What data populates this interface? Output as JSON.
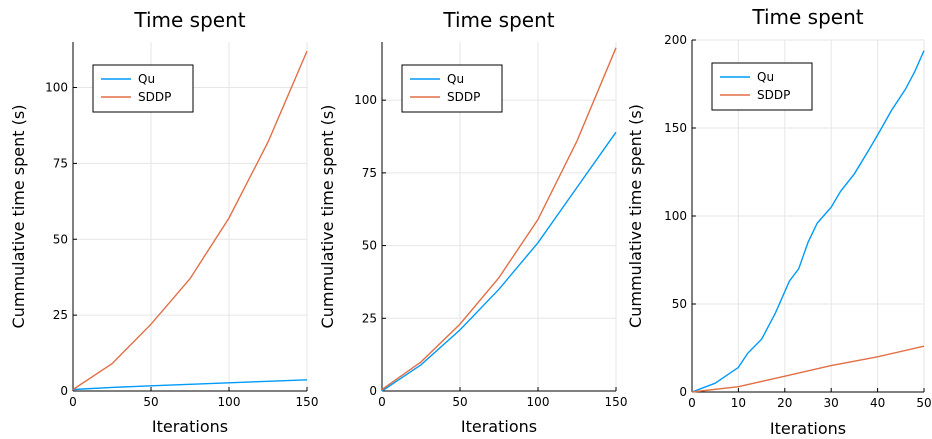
{
  "chart_data": [
    {
      "type": "line",
      "title": "Time spent",
      "xlabel": "Iterations",
      "ylabel": "Cummulative time spent (s)",
      "xlim": [
        0,
        150
      ],
      "ylim": [
        0,
        115
      ],
      "xticks": [
        0,
        50,
        100,
        150
      ],
      "yticks": [
        0,
        25,
        50,
        75,
        100
      ],
      "grid": true,
      "legend": "top-left",
      "series": [
        {
          "name": "Qu",
          "color": "#009af9",
          "x": [
            0,
            25,
            50,
            75,
            100,
            125,
            150
          ],
          "y": [
            0.5,
            1.2,
            1.7,
            2.2,
            2.7,
            3.2,
            3.7
          ]
        },
        {
          "name": "SDDP",
          "color": "#e26f46",
          "x": [
            0,
            25,
            50,
            75,
            100,
            125,
            150
          ],
          "y": [
            0.5,
            9,
            22,
            37,
            57,
            82,
            112
          ]
        }
      ]
    },
    {
      "type": "line",
      "title": "Time spent",
      "xlabel": "Iterations",
      "ylabel": "Cummulative time spent (s)",
      "xlim": [
        0,
        150
      ],
      "ylim": [
        0,
        120
      ],
      "xticks": [
        0,
        50,
        100,
        150
      ],
      "yticks": [
        0,
        25,
        50,
        75,
        100
      ],
      "grid": true,
      "legend": "top-left",
      "series": [
        {
          "name": "Qu",
          "color": "#009af9",
          "x": [
            0,
            25,
            50,
            75,
            100,
            125,
            150
          ],
          "y": [
            0,
            9,
            21,
            35,
            51,
            70,
            89
          ]
        },
        {
          "name": "SDDP",
          "color": "#e26f46",
          "x": [
            0,
            25,
            50,
            75,
            100,
            125,
            150
          ],
          "y": [
            0.5,
            10,
            23,
            39,
            59,
            86,
            118
          ]
        }
      ]
    },
    {
      "type": "line",
      "title": "Time spent",
      "xlabel": "Iterations",
      "ylabel": "Cummulative time spent (s)",
      "xlim": [
        0,
        50
      ],
      "ylim": [
        0,
        200
      ],
      "xticks": [
        0,
        10,
        20,
        30,
        40,
        50
      ],
      "yticks": [
        0,
        50,
        100,
        150,
        200
      ],
      "grid": true,
      "legend": "top-left",
      "series": [
        {
          "name": "Qu",
          "color": "#009af9",
          "x": [
            0,
            5,
            10,
            12,
            15,
            18,
            21,
            23,
            25,
            27,
            30,
            32,
            35,
            38,
            40,
            43,
            46,
            48,
            50
          ],
          "y": [
            0,
            5,
            14,
            22,
            30,
            45,
            63,
            70,
            85,
            96,
            105,
            114,
            124,
            137,
            146,
            160,
            172,
            182,
            194
          ]
        },
        {
          "name": "SDDP",
          "color": "#e26f46",
          "x": [
            0,
            10,
            20,
            30,
            40,
            50
          ],
          "y": [
            0,
            3,
            9,
            15,
            20,
            26
          ]
        }
      ]
    }
  ]
}
